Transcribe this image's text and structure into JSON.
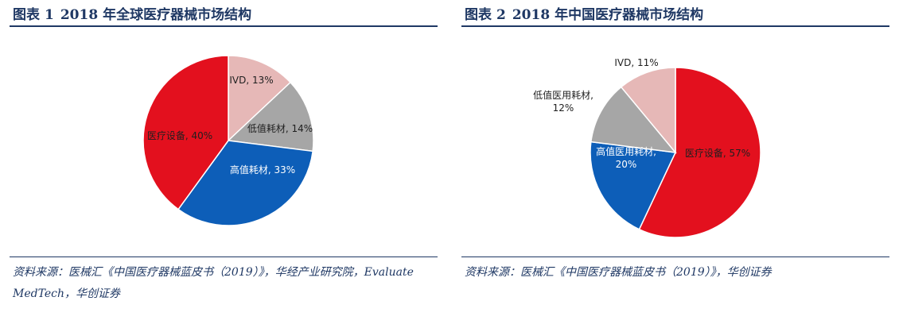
{
  "charts": [
    {
      "title_prefix": "图表",
      "title_number": "1",
      "title_text": "2018 年全球医疗器械市场结构",
      "source": "资料来源：医械汇《中国医疗器械蓝皮书（2019）》，华经产业研究院，Evaluate MedTech，华创证券"
    },
    {
      "title_prefix": "图表",
      "title_number": "2",
      "title_text": "2018 年中国医疗器械市场结构",
      "source": "资料来源：医械汇《中国医疗器械蓝皮书（2019）》，华创证券"
    }
  ],
  "chart_data": [
    {
      "type": "pie",
      "title": "2018 年全球医疗器械市场结构",
      "slices": [
        {
          "label": "IVD",
          "value": 13,
          "display": "IVD, 13%",
          "color": "#e6b8b7"
        },
        {
          "label": "低值耗材",
          "value": 14,
          "display": "低值耗材, 14%",
          "color": "#a6a6a6"
        },
        {
          "label": "高值耗材",
          "value": 33,
          "display": "高值耗材, 33%",
          "color": "#0d5eb8"
        },
        {
          "label": "医疗设备",
          "value": 40,
          "display": "医疗设备, 40%",
          "color": "#e3101e"
        }
      ]
    },
    {
      "type": "pie",
      "title": "2018 年中国医疗器械市场结构",
      "slices": [
        {
          "label": "医疗设备",
          "value": 57,
          "display": "医疗设备, 57%",
          "color": "#e3101e"
        },
        {
          "label": "高值医用耗材",
          "value": 20,
          "display": "高值医用耗材,\n20%",
          "color": "#0d5eb8"
        },
        {
          "label": "低值医用耗材",
          "value": 12,
          "display": "低值医用耗材,\n12%",
          "color": "#a6a6a6"
        },
        {
          "label": "IVD",
          "value": 11,
          "display": "IVD, 11%",
          "color": "#e6b8b7"
        }
      ]
    }
  ]
}
